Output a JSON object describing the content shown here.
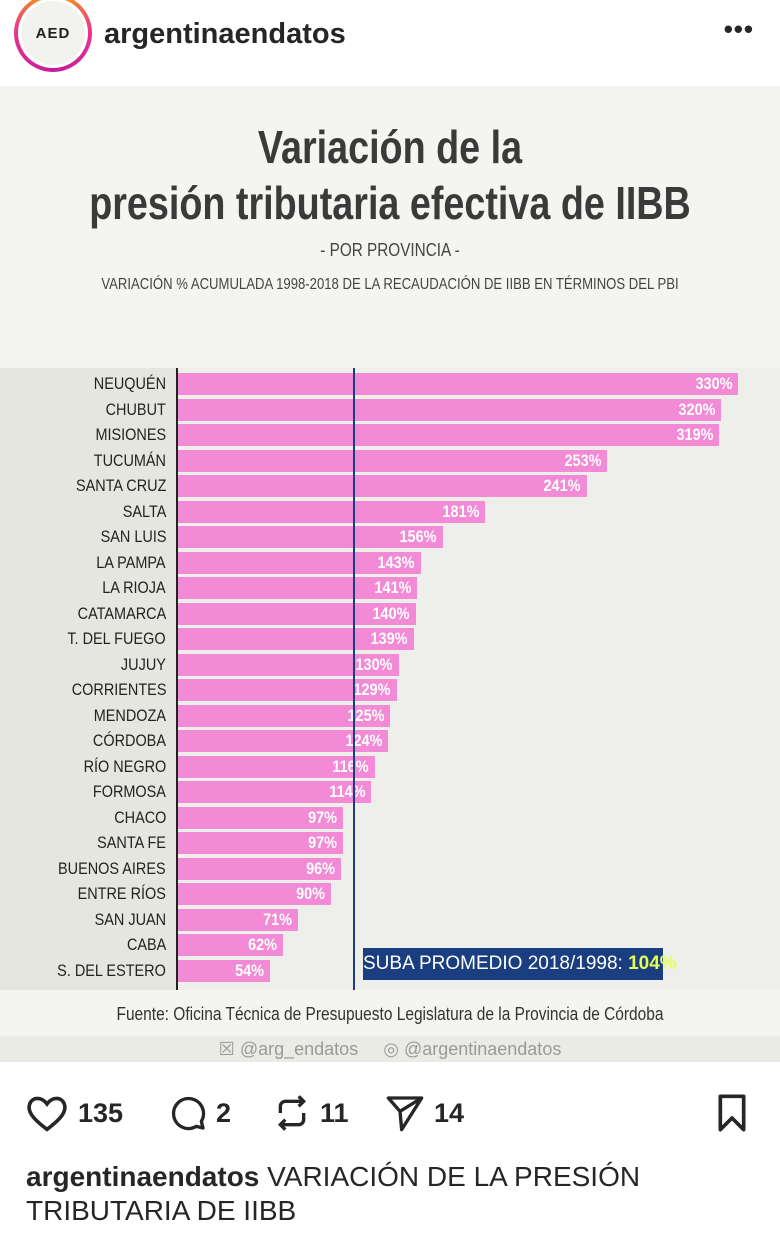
{
  "header": {
    "username": "argentinaendatos",
    "avatar_text": "AED",
    "more_icon": "more-horizontal-icon"
  },
  "chart_data": {
    "type": "bar",
    "orientation": "horizontal",
    "title_line1": "Variación de la",
    "title_line2": "presión tributaria efectiva de IIBB",
    "subtitle": "-   POR PROVINCIA -",
    "description": "VARIACIÓN % ACUMULADA 1998-2018 DE LA RECAUDACIÓN DE IIBB EN TÉRMINOS DEL PBI",
    "categories": [
      "NEUQUÉN",
      "CHUBUT",
      "MISIONES",
      "TUCUMÁN",
      "SANTA CRUZ",
      "SALTA",
      "SAN LUIS",
      "LA PAMPA",
      "LA RIOJA",
      "CATAMARCA",
      "T. DEL FUEGO",
      "JUJUY",
      "CORRIENTES",
      "MENDOZA",
      "CÓRDOBA",
      "RÍO NEGRO",
      "FORMOSA",
      "CHACO",
      "SANTA FE",
      "BUENOS AIRES",
      "ENTRE RÍOS",
      "SAN JUAN",
      "CABA",
      "S. DEL ESTERO"
    ],
    "values": [
      330,
      320,
      319,
      253,
      241,
      181,
      156,
      143,
      141,
      140,
      139,
      130,
      129,
      125,
      124,
      116,
      114,
      97,
      97,
      96,
      90,
      71,
      62,
      54
    ],
    "value_labels": [
      "330%",
      "320%",
      "319%",
      "253%",
      "241%",
      "181%",
      "156%",
      "143%",
      "141%",
      "140%",
      "139%",
      "130%",
      "129%",
      "125%",
      "124%",
      "116%",
      "114%",
      "97%",
      "97%",
      "96%",
      "90%",
      "71%",
      "62%",
      "54%"
    ],
    "xlim": [
      0,
      330
    ],
    "average": 104,
    "average_label_prefix": "SUBA PROMEDIO 2018/1998: ",
    "average_label_value": "104%",
    "bar_color": "#f28ad6",
    "average_color": "#1b3e80",
    "grid": false,
    "source": "Fuente: Oficina Técnica de Presupuesto Legislatura de la Provincia de Córdoba",
    "social_x": "@arg_endatos",
    "social_ig": "@argentinaendatos"
  },
  "actions": {
    "likes": "135",
    "comments": "2",
    "reposts": "11",
    "shares": "14"
  },
  "caption": {
    "user": "argentinaendatos",
    "text": " VARIACIÓN DE LA PRESIÓN TRIBUTARIA DE IIBB"
  }
}
